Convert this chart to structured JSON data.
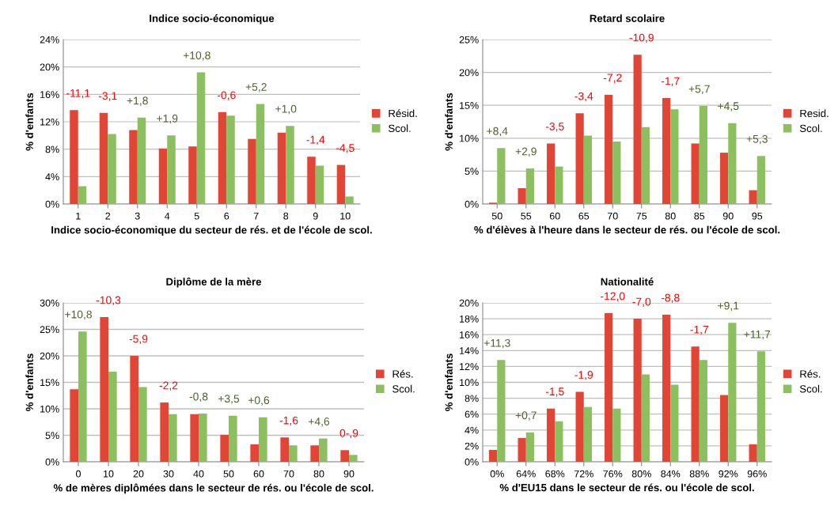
{
  "chart_data": [
    {
      "type": "bar",
      "title": "Indice socio-économique",
      "xlabel": "Indice socio-économique du secteur de rés. et de l'école de scol.",
      "ylabel": "% d'enfants",
      "categories": [
        "1",
        "2",
        "3",
        "4",
        "5",
        "6",
        "7",
        "8",
        "9",
        "10"
      ],
      "series": [
        {
          "name": "Résid.",
          "color": "#e04535",
          "values": [
            13.7,
            13.3,
            10.8,
            8.1,
            8.4,
            13.4,
            9.5,
            10.4,
            6.9,
            5.7
          ]
        },
        {
          "name": "Scol.",
          "color": "#8cbf5f",
          "values": [
            2.6,
            10.2,
            12.6,
            10.0,
            19.2,
            12.9,
            14.6,
            11.4,
            5.6,
            1.1
          ]
        }
      ],
      "ylim": [
        0,
        24
      ],
      "yticks": [
        {
          "value": 0,
          "label": "0%"
        },
        {
          "value": 4,
          "label": "4%"
        },
        {
          "value": 8,
          "label": "8%"
        },
        {
          "value": 12,
          "label": "12%"
        },
        {
          "value": 16,
          "label": "16%"
        },
        {
          "value": 20,
          "label": "20%"
        },
        {
          "value": 24,
          "label": "24%"
        }
      ],
      "grid": "y",
      "legend": "right",
      "annotations": [
        "-11,1",
        "-3,1",
        "+1,8",
        "+1,9",
        "+10,8",
        "-0,6",
        "+5,2",
        "+1,0",
        "-1,4",
        "-4,5"
      ]
    },
    {
      "type": "bar",
      "title": "Retard scolaire",
      "xlabel": "% d'élèves à l'heure dans le secteur de rés. ou l'école de scol.",
      "ylabel": "% d'enfants",
      "categories": [
        "50",
        "55",
        "60",
        "65",
        "70",
        "75",
        "80",
        "85",
        "90",
        "95"
      ],
      "series": [
        {
          "name": "Resid.",
          "color": "#e04535",
          "values": [
            0.2,
            2.4,
            9.2,
            13.8,
            16.6,
            22.7,
            16.1,
            9.2,
            7.8,
            2.1
          ]
        },
        {
          "name": "Scol.",
          "color": "#8cbf5f",
          "values": [
            8.5,
            5.4,
            5.7,
            10.4,
            9.5,
            11.7,
            14.4,
            14.9,
            12.3,
            7.3
          ]
        }
      ],
      "ylim": [
        0,
        25
      ],
      "yticks": [
        {
          "value": 0,
          "label": "0%"
        },
        {
          "value": 5,
          "label": "5%"
        },
        {
          "value": 10,
          "label": "10%"
        },
        {
          "value": 15,
          "label": "15%"
        },
        {
          "value": 20,
          "label": "20%"
        },
        {
          "value": 25,
          "label": "25%"
        }
      ],
      "grid": "y",
      "legend": "right",
      "annotations": [
        "+8,4",
        "+2,9",
        "-3,5",
        "-3,4",
        "-7,2",
        "-10,9",
        "-1,7",
        "+5,7",
        "+4,5",
        "+5,3"
      ]
    },
    {
      "type": "bar",
      "title": "Diplôme de la mère",
      "xlabel": "% de mères diplômées dans le secteur de rés. ou l'école de scol.",
      "ylabel": "% d'enfants",
      "categories": [
        "0",
        "10",
        "20",
        "30",
        "40",
        "50",
        "60",
        "70",
        "80",
        "90"
      ],
      "series": [
        {
          "name": "Rés.",
          "color": "#e04535",
          "values": [
            13.7,
            27.3,
            20.0,
            11.2,
            9.0,
            5.1,
            3.3,
            4.6,
            3.1,
            2.2
          ]
        },
        {
          "name": "Scol.",
          "color": "#8cbf5f",
          "values": [
            24.6,
            17.0,
            14.1,
            9.0,
            9.1,
            8.7,
            8.4,
            3.1,
            4.4,
            1.3
          ]
        }
      ],
      "ylim": [
        0,
        30
      ],
      "yticks": [
        {
          "value": 0,
          "label": "0%"
        },
        {
          "value": 5,
          "label": "5%"
        },
        {
          "value": 10,
          "label": "10%"
        },
        {
          "value": 15,
          "label": "15%"
        },
        {
          "value": 20,
          "label": "20%"
        },
        {
          "value": 25,
          "label": "25%"
        },
        {
          "value": 30,
          "label": "30%"
        }
      ],
      "grid": "y",
      "legend": "right",
      "annotations": [
        "+10,8",
        "-10,3",
        "-5,9",
        "-2,2",
        "-0,8",
        "+3,5",
        "+0,6",
        "-1,6",
        "+4,6",
        "0-,9"
      ]
    },
    {
      "type": "bar",
      "title": "Nationalité",
      "xlabel": "% d'EU15 dans le secteur de rés. ou l'école de scol.",
      "ylabel": "% d'enfants",
      "categories": [
        "0%",
        "64%",
        "68%",
        "72%",
        "76%",
        "80%",
        "84%",
        "88%",
        "92%",
        "96%"
      ],
      "series": [
        {
          "name": "Rés.",
          "color": "#e04535",
          "values": [
            1.5,
            3.0,
            6.7,
            8.8,
            18.7,
            18.0,
            18.5,
            14.5,
            8.4,
            2.2
          ]
        },
        {
          "name": "Scol.",
          "color": "#8cbf5f",
          "values": [
            12.8,
            3.7,
            5.1,
            6.9,
            6.7,
            11.0,
            9.7,
            12.8,
            17.5,
            13.9
          ]
        }
      ],
      "ylim": [
        0,
        20
      ],
      "yticks": [
        {
          "value": 0,
          "label": "0%"
        },
        {
          "value": 2,
          "label": "2%"
        },
        {
          "value": 4,
          "label": "4%"
        },
        {
          "value": 6,
          "label": "6%"
        },
        {
          "value": 8,
          "label": "8%"
        },
        {
          "value": 10,
          "label": "10%"
        },
        {
          "value": 12,
          "label": "12%"
        },
        {
          "value": 14,
          "label": "14%"
        },
        {
          "value": 16,
          "label": "16%"
        },
        {
          "value": 18,
          "label": "18%"
        },
        {
          "value": 20,
          "label": "20%"
        }
      ],
      "grid": "y",
      "legend": "right",
      "annotations": [
        "+11,3",
        "+0,7",
        "-1,5",
        "-1,9",
        "-12,0",
        "-7,0",
        "-8,8",
        "-1,7",
        "+9,1",
        "+11,7"
      ]
    }
  ]
}
